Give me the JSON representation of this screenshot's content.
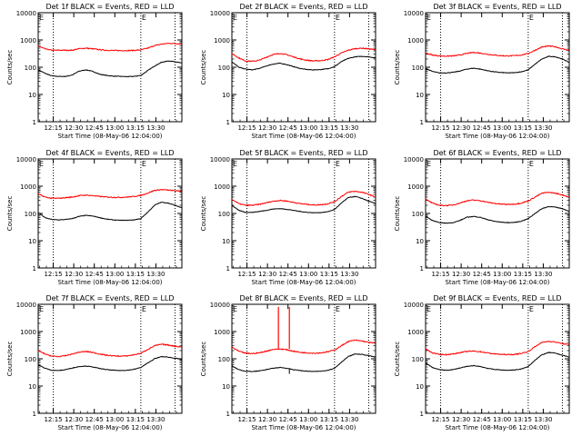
{
  "figure": {
    "xlabel": "Start Time (08-May-06 12:04:00)",
    "ylabel": "Counts/sec",
    "x_tick_labels": [
      "12:15",
      "12:30",
      "12:45",
      "13:00",
      "13:15",
      "13:30"
    ],
    "y_tick_labels": [
      "1",
      "10",
      "100",
      "1000",
      "10000"
    ],
    "colors": {
      "events": "#000000",
      "lld": "#ff0000",
      "axes": "#000000"
    }
  },
  "chart_data": [
    {
      "type": "line",
      "title": "Det 1f BLACK = Events, RED = LLD",
      "x_minutes": [
        0,
        5,
        10,
        15,
        20,
        25,
        30,
        35,
        40,
        45,
        50,
        55,
        60,
        65,
        70,
        75,
        80,
        85,
        90,
        95,
        100,
        105
      ],
      "xlim_minutes": [
        0,
        105
      ],
      "ylim": [
        1,
        10000
      ],
      "y_scale": "log",
      "vlines_minutes": [
        11,
        75,
        100
      ],
      "markers": [
        {
          "text": "E",
          "x_minutes": 0
        },
        {
          "text": "E",
          "x_minutes": 75
        }
      ],
      "series": [
        {
          "name": "BLACK = Events",
          "color": "#000000",
          "values": [
            80,
            60,
            48,
            46,
            46,
            52,
            72,
            80,
            70,
            55,
            50,
            47,
            46,
            45,
            46,
            50,
            75,
            110,
            150,
            170,
            160,
            140
          ]
        },
        {
          "name": "RED = LLD",
          "color": "#ff0000",
          "values": [
            600,
            470,
            420,
            420,
            420,
            420,
            480,
            500,
            470,
            440,
            420,
            410,
            410,
            410,
            415,
            430,
            500,
            620,
            700,
            750,
            740,
            720
          ]
        }
      ]
    },
    {
      "type": "line",
      "title": "Det 2f BLACK = Events, RED = LLD",
      "x_minutes": [
        0,
        5,
        10,
        15,
        20,
        25,
        30,
        35,
        40,
        45,
        50,
        55,
        60,
        65,
        70,
        75,
        80,
        85,
        90,
        95,
        100,
        105
      ],
      "xlim_minutes": [
        0,
        105
      ],
      "ylim": [
        1,
        10000
      ],
      "y_scale": "log",
      "vlines_minutes": [
        11,
        75,
        100
      ],
      "markers": [
        {
          "text": "E",
          "x_minutes": 0
        },
        {
          "text": "E",
          "x_minutes": 75
        }
      ],
      "series": [
        {
          "name": "BLACK = Events",
          "color": "#000000",
          "values": [
            160,
            100,
            85,
            80,
            90,
            110,
            130,
            140,
            125,
            105,
            90,
            82,
            80,
            82,
            88,
            105,
            160,
            210,
            240,
            250,
            240,
            220
          ]
        },
        {
          "name": "RED = LLD",
          "color": "#ff0000",
          "values": [
            320,
            220,
            170,
            165,
            180,
            230,
            290,
            320,
            290,
            240,
            200,
            180,
            170,
            175,
            190,
            240,
            330,
            420,
            480,
            500,
            470,
            440
          ]
        }
      ]
    },
    {
      "type": "line",
      "title": "Det 3f BLACK = Events, RED = LLD",
      "x_minutes": [
        0,
        5,
        10,
        15,
        20,
        25,
        30,
        35,
        40,
        45,
        50,
        55,
        60,
        65,
        70,
        75,
        80,
        85,
        90,
        95,
        100,
        105
      ],
      "xlim_minutes": [
        0,
        105
      ],
      "ylim": [
        1,
        10000
      ],
      "y_scale": "log",
      "vlines_minutes": [
        11,
        75,
        100
      ],
      "markers": [
        {
          "text": "E",
          "x_minutes": 0
        },
        {
          "text": "E",
          "x_minutes": 75
        }
      ],
      "series": [
        {
          "name": "BLACK = Events",
          "color": "#000000",
          "values": [
            90,
            70,
            62,
            62,
            65,
            72,
            85,
            92,
            85,
            75,
            68,
            64,
            62,
            63,
            68,
            80,
            130,
            200,
            250,
            240,
            200,
            150
          ]
        },
        {
          "name": "RED = LLD",
          "color": "#ff0000",
          "values": [
            330,
            280,
            260,
            255,
            260,
            280,
            320,
            350,
            330,
            300,
            280,
            265,
            260,
            265,
            280,
            320,
            420,
            550,
            600,
            560,
            470,
            420
          ]
        }
      ]
    },
    {
      "type": "line",
      "title": "Det 4f BLACK = Events, RED = LLD",
      "x_minutes": [
        0,
        5,
        10,
        15,
        20,
        25,
        30,
        35,
        40,
        45,
        50,
        55,
        60,
        65,
        70,
        75,
        80,
        85,
        90,
        95,
        100,
        105
      ],
      "xlim_minutes": [
        0,
        105
      ],
      "ylim": [
        1,
        10000
      ],
      "y_scale": "log",
      "vlines_minutes": [
        11,
        75,
        100
      ],
      "markers": [
        {
          "text": "E",
          "x_minutes": 0
        },
        {
          "text": "E",
          "x_minutes": 75
        }
      ],
      "series": [
        {
          "name": "BLACK = Events",
          "color": "#000000",
          "values": [
            110,
            70,
            60,
            58,
            60,
            65,
            78,
            85,
            80,
            70,
            62,
            58,
            56,
            56,
            58,
            65,
            110,
            200,
            260,
            240,
            200,
            160
          ]
        },
        {
          "name": "RED = LLD",
          "color": "#ff0000",
          "values": [
            520,
            400,
            360,
            360,
            380,
            400,
            450,
            470,
            450,
            420,
            400,
            390,
            390,
            400,
            420,
            460,
            560,
            700,
            750,
            720,
            680,
            650
          ]
        }
      ]
    },
    {
      "type": "line",
      "title": "Det 5f BLACK = Events, RED = LLD",
      "x_minutes": [
        0,
        5,
        10,
        15,
        20,
        25,
        30,
        35,
        40,
        45,
        50,
        55,
        60,
        65,
        70,
        75,
        80,
        85,
        90,
        95,
        100,
        105
      ],
      "xlim_minutes": [
        0,
        105
      ],
      "ylim": [
        1,
        10000
      ],
      "y_scale": "log",
      "vlines_minutes": [
        11,
        75,
        100
      ],
      "markers": [
        {
          "text": "E",
          "x_minutes": 0
        },
        {
          "text": "E",
          "x_minutes": 75
        }
      ],
      "series": [
        {
          "name": "BLACK = Events",
          "color": "#000000",
          "values": [
            200,
            130,
            110,
            110,
            118,
            130,
            145,
            150,
            142,
            130,
            118,
            110,
            106,
            108,
            115,
            140,
            240,
            380,
            420,
            360,
            280,
            230
          ]
        },
        {
          "name": "RED = LLD",
          "color": "#ff0000",
          "values": [
            330,
            230,
            200,
            200,
            215,
            245,
            280,
            300,
            285,
            255,
            230,
            215,
            205,
            210,
            225,
            270,
            420,
            600,
            650,
            600,
            500,
            400
          ]
        }
      ]
    },
    {
      "type": "line",
      "title": "Det 6f BLACK = Events, RED = LLD",
      "x_minutes": [
        0,
        5,
        10,
        15,
        20,
        25,
        30,
        35,
        40,
        45,
        50,
        55,
        60,
        65,
        70,
        75,
        80,
        85,
        90,
        95,
        100,
        105
      ],
      "xlim_minutes": [
        0,
        105
      ],
      "ylim": [
        1,
        10000
      ],
      "y_scale": "log",
      "vlines_minutes": [
        11,
        75,
        100
      ],
      "markers": [
        {
          "text": "E",
          "x_minutes": 0
        },
        {
          "text": "E",
          "x_minutes": 75
        }
      ],
      "series": [
        {
          "name": "BLACK = Events",
          "color": "#000000",
          "values": [
            80,
            55,
            46,
            44,
            46,
            55,
            72,
            78,
            72,
            60,
            52,
            48,
            46,
            47,
            52,
            65,
            100,
            150,
            180,
            170,
            150,
            120
          ]
        },
        {
          "name": "RED = LLD",
          "color": "#ff0000",
          "values": [
            330,
            240,
            200,
            195,
            205,
            240,
            290,
            310,
            295,
            260,
            235,
            220,
            215,
            220,
            240,
            290,
            400,
            550,
            600,
            550,
            480,
            400
          ]
        }
      ]
    },
    {
      "type": "line",
      "title": "Det 7f BLACK = Events, RED = LLD",
      "x_minutes": [
        0,
        5,
        10,
        15,
        20,
        25,
        30,
        35,
        40,
        45,
        50,
        55,
        60,
        65,
        70,
        75,
        80,
        85,
        90,
        95,
        100,
        105
      ],
      "xlim_minutes": [
        0,
        105
      ],
      "ylim": [
        1,
        10000
      ],
      "y_scale": "log",
      "vlines_minutes": [
        11,
        75,
        100
      ],
      "markers": [
        {
          "text": "E",
          "x_minutes": 0
        },
        {
          "text": "E",
          "x_minutes": 75
        }
      ],
      "series": [
        {
          "name": "BLACK = Events",
          "color": "#000000",
          "values": [
            60,
            45,
            38,
            37,
            40,
            46,
            52,
            54,
            50,
            44,
            40,
            38,
            37,
            38,
            41,
            48,
            70,
            100,
            120,
            115,
            105,
            95
          ]
        },
        {
          "name": "RED = LLD",
          "color": "#ff0000",
          "values": [
            200,
            150,
            125,
            120,
            130,
            150,
            175,
            185,
            170,
            150,
            135,
            128,
            125,
            128,
            140,
            160,
            220,
            300,
            340,
            320,
            290,
            270
          ]
        }
      ]
    },
    {
      "type": "line",
      "title": "Det 8f BLACK = Events, RED = LLD",
      "x_minutes": [
        0,
        5,
        10,
        15,
        20,
        25,
        30,
        35,
        40,
        45,
        50,
        55,
        60,
        65,
        70,
        75,
        80,
        85,
        90,
        95,
        100,
        105
      ],
      "xlim_minutes": [
        0,
        105
      ],
      "ylim": [
        1,
        10000
      ],
      "y_scale": "log",
      "vlines_minutes": [
        11,
        75,
        100
      ],
      "markers": [
        {
          "text": "E",
          "x_minutes": 0
        },
        {
          "text": "E",
          "x_minutes": 75
        }
      ],
      "spikes": [
        {
          "x_minutes": 34,
          "value": 8000
        },
        {
          "x_minutes": 42,
          "value": 8000
        }
      ],
      "series": [
        {
          "name": "BLACK = Events",
          "color": "#000000",
          "values": [
            55,
            40,
            35,
            34,
            36,
            40,
            45,
            48,
            45,
            40,
            37,
            35,
            34,
            35,
            38,
            45,
            75,
            120,
            150,
            145,
            130,
            115
          ]
        },
        {
          "name": "RED = LLD",
          "color": "#ff0000",
          "values": [
            270,
            190,
            160,
            155,
            165,
            190,
            220,
            230,
            215,
            190,
            172,
            165,
            160,
            165,
            180,
            210,
            300,
            430,
            480,
            450,
            400,
            370
          ]
        }
      ]
    },
    {
      "type": "line",
      "title": "Det 9f BLACK = Events, RED = LLD",
      "x_minutes": [
        0,
        5,
        10,
        15,
        20,
        25,
        30,
        35,
        40,
        45,
        50,
        55,
        60,
        65,
        70,
        75,
        80,
        85,
        90,
        95,
        100,
        105
      ],
      "xlim_minutes": [
        0,
        105
      ],
      "ylim": [
        1,
        10000
      ],
      "y_scale": "log",
      "vlines_minutes": [
        11,
        75,
        100
      ],
      "markers": [
        {
          "text": "E",
          "x_minutes": 0
        },
        {
          "text": "E",
          "x_minutes": 75
        }
      ],
      "series": [
        {
          "name": "BLACK = Events",
          "color": "#000000",
          "values": [
            70,
            48,
            40,
            38,
            40,
            46,
            52,
            56,
            52,
            45,
            41,
            39,
            38,
            39,
            42,
            52,
            90,
            140,
            170,
            160,
            135,
            115
          ]
        },
        {
          "name": "RED = LLD",
          "color": "#ff0000",
          "values": [
            230,
            165,
            145,
            142,
            150,
            168,
            185,
            192,
            182,
            165,
            152,
            145,
            142,
            145,
            158,
            185,
            280,
            400,
            440,
            410,
            360,
            330
          ]
        }
      ]
    }
  ]
}
